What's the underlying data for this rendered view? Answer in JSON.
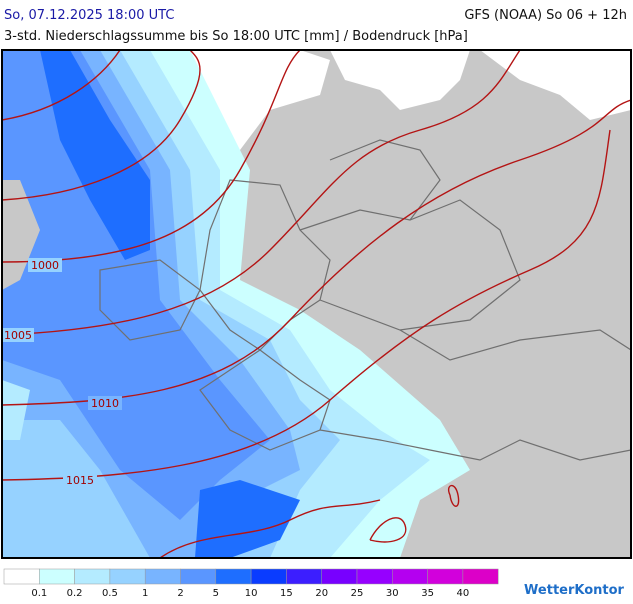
{
  "header": {
    "datetime": "So, 07.12.2025 18:00 UTC",
    "model": "GFS (NOAA) So 06 + 12h",
    "subtitle": "3-std. Niederschlagssumme bis So 18:00 UTC [mm] / Bodendruck [hPa]"
  },
  "isobars": [
    {
      "label": "1000"
    },
    {
      "label": "1005"
    },
    {
      "label": "1010"
    },
    {
      "label": "1015"
    }
  ],
  "legend": {
    "colors": [
      "#ffffff",
      "#ccffff",
      "#b4ebff",
      "#96d2ff",
      "#78b4ff",
      "#5a96ff",
      "#1e6eff",
      "#0a3cff",
      "#3c1eff",
      "#7800ff",
      "#9600ff",
      "#b400f0",
      "#d200dc",
      "#dc00c8"
    ],
    "labels": [
      "0.1",
      "0.2",
      "0.5",
      "1",
      "2",
      "5",
      "10",
      "15",
      "20",
      "25",
      "30",
      "35",
      "40"
    ]
  },
  "logo": "WetterKontor"
}
